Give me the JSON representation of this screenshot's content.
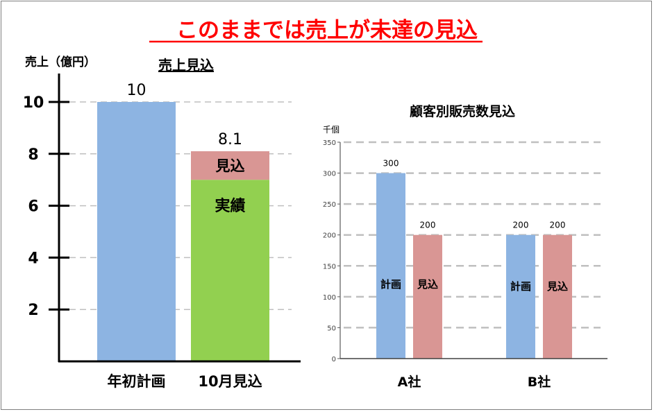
{
  "slide_title": "このままでは売上が未達の見込",
  "colors": {
    "title_red": "#ff0000",
    "plan_blue": "#8db4e2",
    "forecast_pink": "#d99694",
    "actual_green": "#92d050",
    "grid_gray": "#bfbfbf",
    "axis": "#000000"
  },
  "chart_data": [
    {
      "type": "bar",
      "stacked": true,
      "title": "売上見込",
      "ylabel": "売上（億円）",
      "categories": [
        "年初計画",
        "10月見込"
      ],
      "series": [
        {
          "name": "計画",
          "values": [
            10,
            null
          ]
        },
        {
          "name": "実績",
          "values": [
            null,
            7.0
          ]
        },
        {
          "name": "見込",
          "values": [
            null,
            1.1
          ]
        }
      ],
      "totals": [
        10,
        8.1
      ],
      "total_labels": [
        "10",
        "8.1"
      ],
      "ylim": [
        0,
        10
      ],
      "yticks": [
        2,
        4,
        6,
        8,
        10
      ],
      "ytick_labels": [
        "2",
        "4",
        "6",
        "8",
        "10"
      ],
      "grid": true
    },
    {
      "type": "bar",
      "title": "顧客別販売数見込",
      "ylabel": "千個",
      "categories": [
        "A社",
        "B社"
      ],
      "series": [
        {
          "name": "計画",
          "values": [
            300,
            200
          ]
        },
        {
          "name": "見込",
          "values": [
            200,
            200
          ]
        }
      ],
      "value_labels": [
        [
          "300",
          "200"
        ],
        [
          "200",
          "200"
        ]
      ],
      "ylim": [
        0,
        350
      ],
      "yticks": [
        0,
        50,
        100,
        150,
        200,
        250,
        300,
        350
      ],
      "ytick_labels": [
        "0",
        "50",
        "100",
        "150",
        "200",
        "250",
        "300",
        "350"
      ],
      "grid": true
    }
  ]
}
